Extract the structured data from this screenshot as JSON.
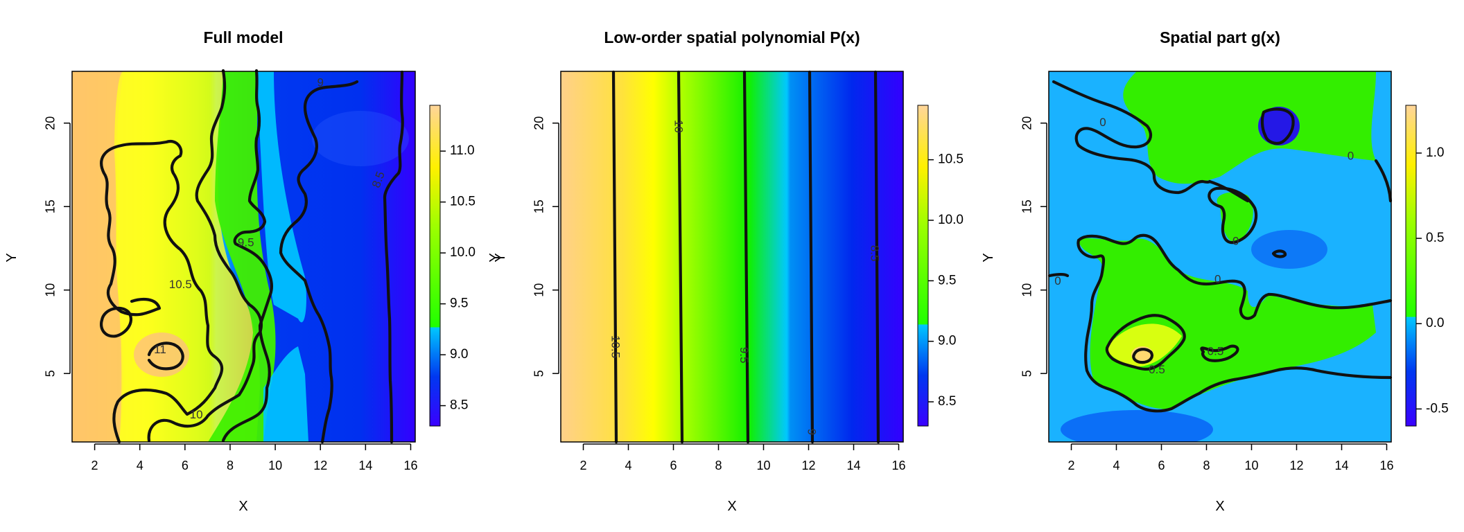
{
  "chart_data": [
    {
      "type": "heatmap",
      "title": "Full model",
      "xlabel": "X",
      "ylabel": "Y",
      "xlim": [
        1,
        16.2
      ],
      "ylim": [
        0.9,
        23.1
      ],
      "xticks": [
        2,
        4,
        6,
        8,
        10,
        12,
        14,
        16
      ],
      "yticks": [
        5,
        10,
        15,
        20
      ],
      "colorbar": {
        "range": [
          8.3,
          11.45
        ],
        "threshold": 9.27,
        "ticks": [
          8.5,
          9.0,
          9.5,
          10.0,
          10.5,
          11.0
        ],
        "tick_labels": [
          "8.5",
          "9.0",
          "9.5",
          "10.0",
          "10.5",
          "11.0"
        ]
      },
      "contour_labels": [
        {
          "text": "11",
          "x": 4.9,
          "y": 6.4
        },
        {
          "text": "10.5",
          "x": 5.8,
          "y": 10.3
        },
        {
          "text": "10",
          "x": 6.5,
          "y": 2.5
        },
        {
          "text": "9.5",
          "x": 8.7,
          "y": 12.8
        },
        {
          "text": "9",
          "x": 12.0,
          "y": 22.4
        },
        {
          "text": "8.5",
          "x": 14.6,
          "y": 16.6
        }
      ]
    },
    {
      "type": "heatmap",
      "title": "Low-order spatial polynomial P(x)",
      "xlabel": "X",
      "ylabel": "Y",
      "xlim": [
        1,
        16.2
      ],
      "ylim": [
        0.9,
        23.1
      ],
      "xticks": [
        2,
        4,
        6,
        8,
        10,
        12,
        14,
        16
      ],
      "yticks": [
        5,
        10,
        15,
        20
      ],
      "colorbar": {
        "range": [
          8.3,
          10.95
        ],
        "threshold": 9.14,
        "ticks": [
          8.5,
          9.0,
          9.5,
          10.0,
          10.5
        ],
        "tick_labels": [
          "8.5",
          "9.0",
          "9.5",
          "10.0",
          "10.5"
        ]
      },
      "contour_labels": [
        {
          "text": "10.5",
          "x": 3.4,
          "y": 6.6
        },
        {
          "text": "10",
          "x": 6.2,
          "y": 19.8
        },
        {
          "text": "9.5",
          "x": 9.1,
          "y": 6.1
        },
        {
          "text": "9",
          "x": 12.1,
          "y": 1.5
        },
        {
          "text": "8.5",
          "x": 14.9,
          "y": 12.2
        }
      ]
    },
    {
      "type": "heatmap",
      "title": "Spatial part g(x)",
      "xlabel": "X",
      "ylabel": "Y",
      "xlim": [
        1,
        16.2
      ],
      "ylim": [
        0.9,
        23.1
      ],
      "xticks": [
        2,
        4,
        6,
        8,
        10,
        12,
        14,
        16
      ],
      "yticks": [
        5,
        10,
        15,
        20
      ],
      "colorbar": {
        "range": [
          -0.6,
          1.28
        ],
        "threshold": 0.04,
        "ticks": [
          -0.5,
          0.0,
          0.5,
          1.0
        ],
        "tick_labels": [
          "-0.5",
          "0.0",
          "0.5",
          "1.0"
        ]
      },
      "contour_labels": [
        {
          "text": "0",
          "x": 3.4,
          "y": 20.0
        },
        {
          "text": "0",
          "x": 14.4,
          "y": 18.0
        },
        {
          "text": "0",
          "x": 9.3,
          "y": 12.9
        },
        {
          "text": "0",
          "x": 8.5,
          "y": 10.6
        },
        {
          "text": "0",
          "x": 1.4,
          "y": 10.5
        },
        {
          "text": "0.5",
          "x": 8.4,
          "y": 6.3
        },
        {
          "text": "0.5",
          "x": 5.8,
          "y": 5.2
        }
      ]
    }
  ]
}
